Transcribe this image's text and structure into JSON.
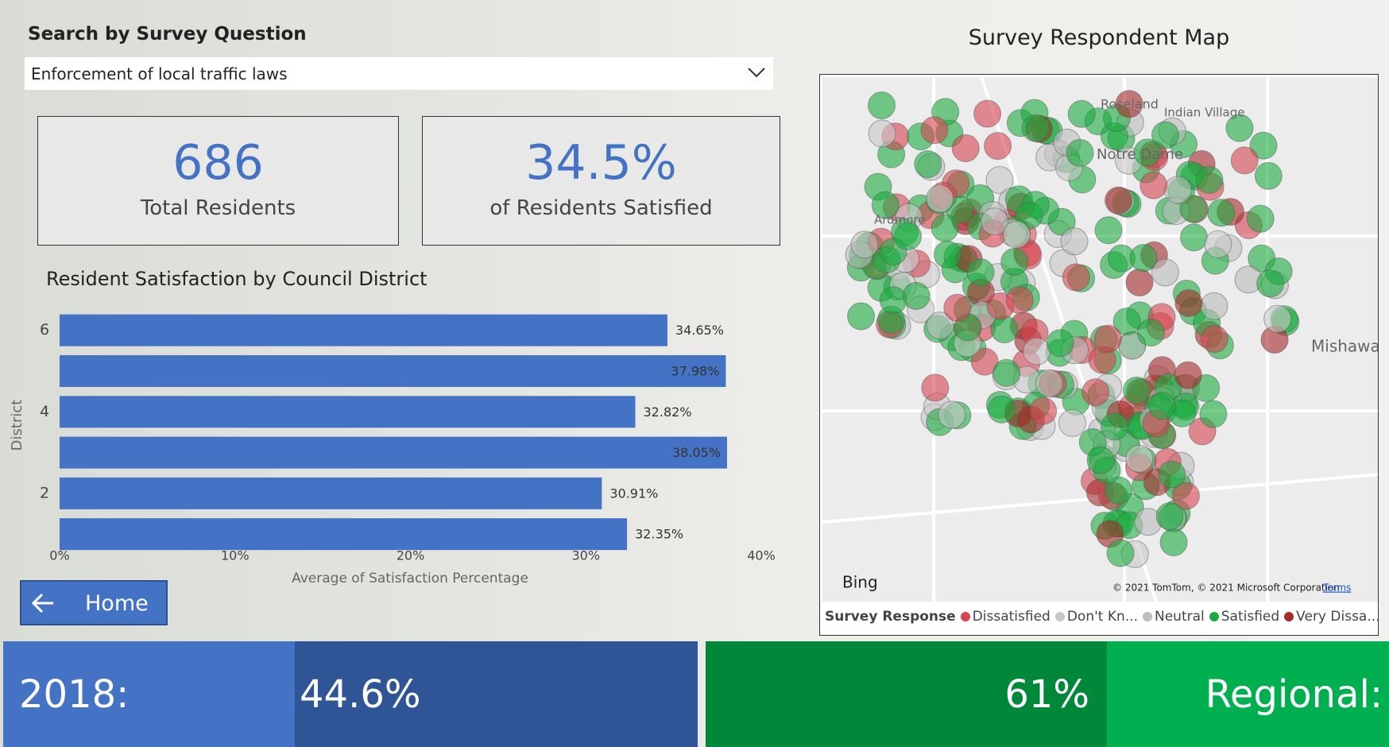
{
  "search": {
    "title": "Search by Survey Question",
    "selected": "Enforcement of local traffic laws"
  },
  "kpis": [
    {
      "value": "686",
      "label": "Total Residents"
    },
    {
      "value": "34.5%",
      "label": "of Residents Satisfied"
    }
  ],
  "chart_data": {
    "type": "bar",
    "orientation": "horizontal",
    "title": "Resident Satisfaction by Council District",
    "x_label": "Average of Satisfaction Percentage",
    "y_label": "District",
    "categories": [
      "6",
      null,
      "4",
      null,
      "2",
      null
    ],
    "values": [
      34.65,
      37.98,
      32.82,
      38.05,
      30.91,
      32.35
    ],
    "value_labels": [
      "34.65%",
      "37.98%",
      "32.82%",
      "38.05%",
      "30.91%",
      "32.35%"
    ],
    "color": "#4472c4",
    "xlim": [
      0,
      40
    ],
    "xticks": [
      {
        "value": 0,
        "label": "0%"
      },
      {
        "value": 10,
        "label": "10%"
      },
      {
        "value": 20,
        "label": "20%"
      },
      {
        "value": 30,
        "label": "30%"
      },
      {
        "value": 40,
        "label": "40%"
      }
    ]
  },
  "home_button": "Home",
  "map": {
    "title": "Survey Respondent Map",
    "places": [
      "Roseland",
      "Indian Village",
      "Notre Dame",
      "Ardmore",
      "Mishawa"
    ],
    "bing": "Bing",
    "copyright": "© 2021 TomTom, © 2021 Microsoft Corporation",
    "terms": "Terms",
    "legend_title": "Survey Response",
    "legend": [
      {
        "name": "Dissatisfied",
        "color": "#d64550"
      },
      {
        "name": "Don't Kn...",
        "color": "#c8c8c8"
      },
      {
        "name": "Neutral",
        "color": "#bdbdbd"
      },
      {
        "name": "Satisfied",
        "color": "#1aab40"
      },
      {
        "name": "Very Dissa...",
        "color": "#a52a2a"
      }
    ]
  },
  "footer": {
    "year_label": "2018:",
    "year_value": "44.6%",
    "regional_value": "61%",
    "regional_label": "Regional:"
  }
}
